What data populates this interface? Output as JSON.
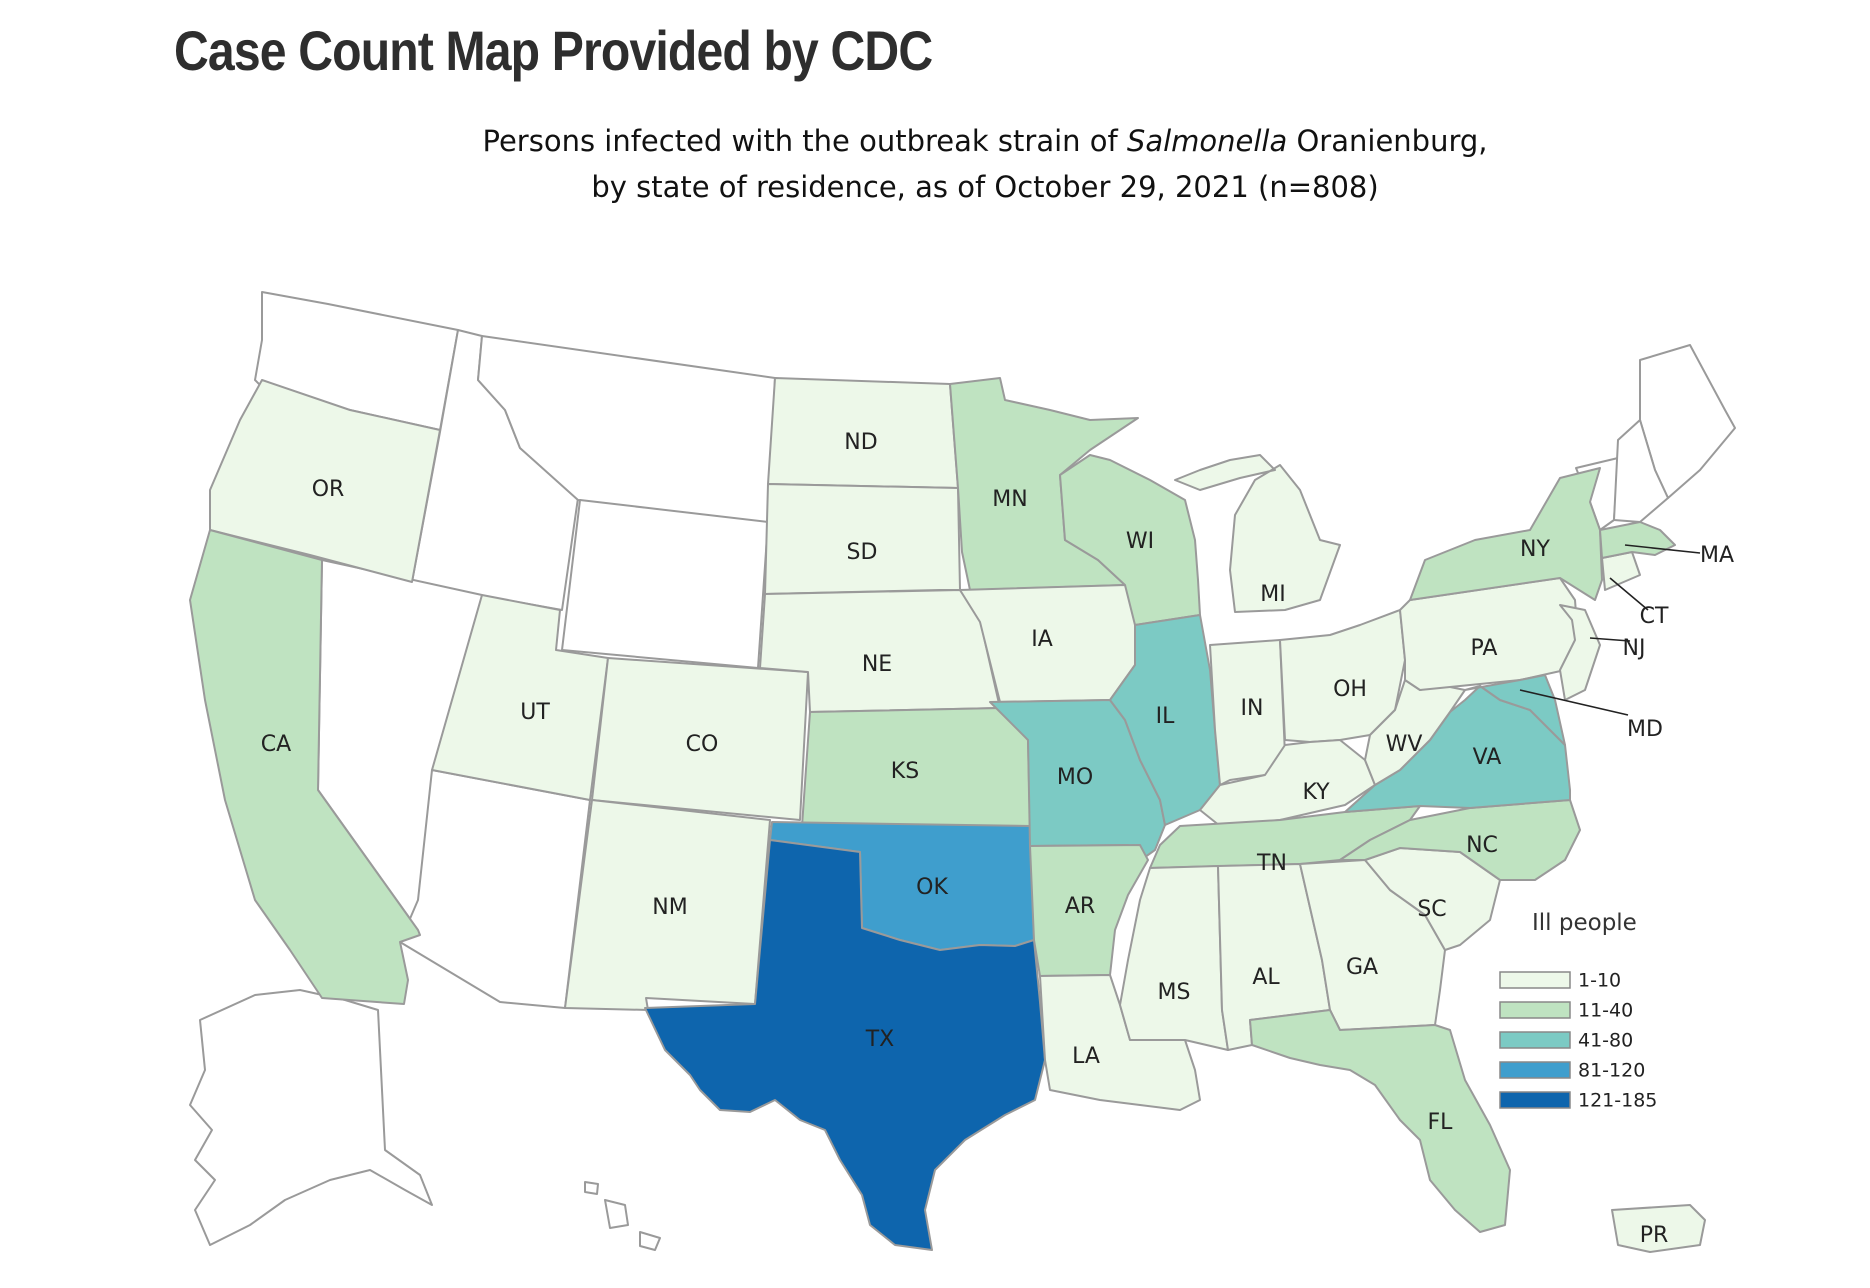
{
  "page": {
    "heading": "Case Count Map Provided by CDC"
  },
  "map": {
    "title_line1_pre": "Persons infected with the outbreak strain of",
    "title_line1_italic": "Salmonella",
    "title_line1_post": "Oranienburg,",
    "title_line2": "by state of residence, as of October 29, 2021 (n=808)",
    "total_cases": 808,
    "legend": {
      "title": "Ill people",
      "bins": [
        {
          "label": "1-10",
          "color": "#edf8e9"
        },
        {
          "label": "11-40",
          "color": "#bfe3c1"
        },
        {
          "label": "41-80",
          "color": "#7ccac4"
        },
        {
          "label": "81-120",
          "color": "#3f9ecd"
        },
        {
          "label": "121-185",
          "color": "#0e65ad"
        }
      ],
      "none_color": "#ffffff"
    },
    "states": [
      {
        "abbr": "OR",
        "bin": 0
      },
      {
        "abbr": "CA",
        "bin": 1
      },
      {
        "abbr": "UT",
        "bin": 0
      },
      {
        "abbr": "CO",
        "bin": 0
      },
      {
        "abbr": "NM",
        "bin": 0
      },
      {
        "abbr": "ND",
        "bin": 0
      },
      {
        "abbr": "SD",
        "bin": 0
      },
      {
        "abbr": "NE",
        "bin": 0
      },
      {
        "abbr": "KS",
        "bin": 1
      },
      {
        "abbr": "OK",
        "bin": 3
      },
      {
        "abbr": "TX",
        "bin": 4
      },
      {
        "abbr": "MN",
        "bin": 1
      },
      {
        "abbr": "IA",
        "bin": 0
      },
      {
        "abbr": "MO",
        "bin": 2
      },
      {
        "abbr": "AR",
        "bin": 1
      },
      {
        "abbr": "LA",
        "bin": 0
      },
      {
        "abbr": "WI",
        "bin": 1
      },
      {
        "abbr": "IL",
        "bin": 2
      },
      {
        "abbr": "MI",
        "bin": 0
      },
      {
        "abbr": "IN",
        "bin": 0
      },
      {
        "abbr": "OH",
        "bin": 0
      },
      {
        "abbr": "KY",
        "bin": 0
      },
      {
        "abbr": "TN",
        "bin": 1
      },
      {
        "abbr": "MS",
        "bin": 0
      },
      {
        "abbr": "AL",
        "bin": 0
      },
      {
        "abbr": "GA",
        "bin": 0
      },
      {
        "abbr": "FL",
        "bin": 1
      },
      {
        "abbr": "SC",
        "bin": 0
      },
      {
        "abbr": "NC",
        "bin": 1
      },
      {
        "abbr": "VA",
        "bin": 2
      },
      {
        "abbr": "WV",
        "bin": 0
      },
      {
        "abbr": "PA",
        "bin": 0
      },
      {
        "abbr": "NY",
        "bin": 1
      },
      {
        "abbr": "NJ",
        "bin": 0
      },
      {
        "abbr": "MD",
        "bin": 2
      },
      {
        "abbr": "CT",
        "bin": 0
      },
      {
        "abbr": "MA",
        "bin": 1
      },
      {
        "abbr": "PR",
        "bin": 0
      }
    ]
  }
}
